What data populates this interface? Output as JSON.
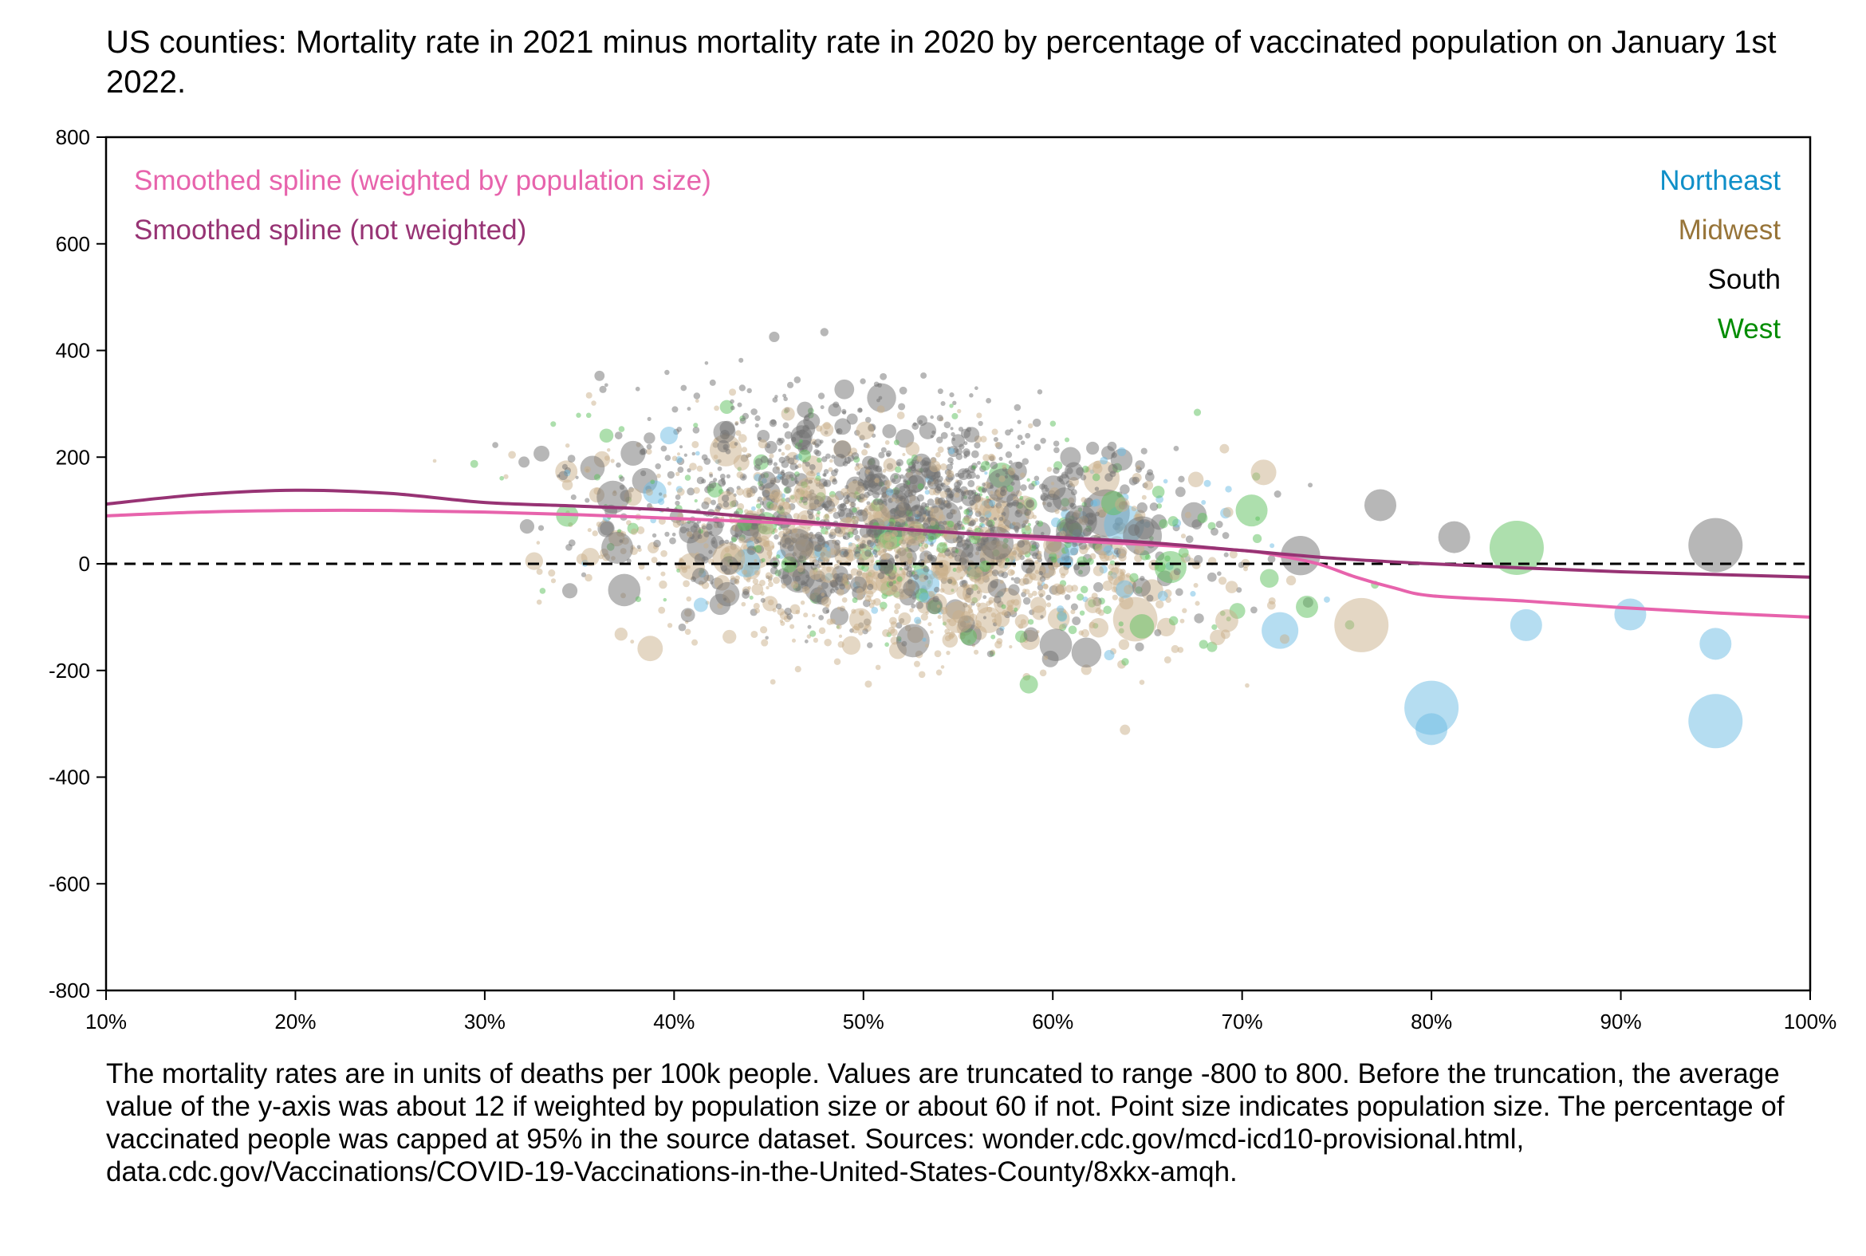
{
  "chart_data": {
    "type": "scatter",
    "title": "US counties: Mortality rate in 2021 minus mortality rate in 2020 by percentage of vaccinated population on January 1st 2022.",
    "xlabel": "",
    "ylabel": "",
    "xlim": [
      10,
      100
    ],
    "ylim": [
      -800,
      800
    ],
    "x_ticks": [
      10,
      20,
      30,
      40,
      50,
      60,
      70,
      80,
      90,
      100
    ],
    "x_tick_labels": [
      "10%",
      "20%",
      "30%",
      "40%",
      "50%",
      "60%",
      "70%",
      "80%",
      "90%",
      "100%"
    ],
    "y_ticks": [
      800,
      600,
      400,
      200,
      0,
      -200,
      -400,
      -600,
      -800
    ],
    "y_tick_labels": [
      "800",
      "600",
      "400",
      "200",
      "0",
      "-200",
      "-400",
      "-600",
      "-800"
    ],
    "grid": false,
    "reference_line": {
      "y": 0,
      "style": "dashed",
      "color": "#000000"
    },
    "regions": [
      {
        "name": "Northeast",
        "color": "#0f8fc8",
        "point_color": "#6bbce3"
      },
      {
        "name": "Midwest",
        "color": "#977438",
        "point_color": "#c9b08a"
      },
      {
        "name": "South",
        "color": "#000000",
        "point_color": "#707070"
      },
      {
        "name": "West",
        "color": "#008c00",
        "point_color": "#5cbf5c"
      }
    ],
    "legend_placement": "top-right",
    "series": [
      {
        "name": "Smoothed spline (weighted by population size)",
        "type": "line",
        "color": "#e763ac",
        "x": [
          10,
          15,
          20,
          25,
          30,
          35,
          40,
          45,
          50,
          55,
          60,
          65,
          70,
          72,
          74,
          76,
          78,
          80,
          85,
          90,
          95,
          100
        ],
        "y": [
          90,
          97,
          100,
          100,
          97,
          92,
          85,
          78,
          70,
          58,
          45,
          36,
          25,
          15,
          0,
          -25,
          -45,
          -60,
          -70,
          -82,
          -92,
          -100
        ]
      },
      {
        "name": "Smoothed spline (not weighted)",
        "type": "line",
        "color": "#973374",
        "x": [
          10,
          15,
          20,
          25,
          30,
          35,
          40,
          45,
          50,
          55,
          60,
          65,
          70,
          75,
          80,
          85,
          90,
          95,
          100
        ],
        "y": [
          112,
          130,
          138,
          132,
          115,
          108,
          100,
          85,
          70,
          58,
          50,
          40,
          25,
          10,
          0,
          -8,
          -15,
          -20,
          -25
        ]
      }
    ],
    "highlight_points": [
      {
        "region": "Northeast",
        "x": 80,
        "y": -270,
        "size": "large"
      },
      {
        "region": "Northeast",
        "x": 80,
        "y": -310,
        "size": "medium"
      },
      {
        "region": "Northeast",
        "x": 95,
        "y": -295,
        "size": "large"
      },
      {
        "region": "Northeast",
        "x": 95,
        "y": -150,
        "size": "medium"
      },
      {
        "region": "Northeast",
        "x": 90.5,
        "y": -95,
        "size": "medium"
      },
      {
        "region": "Northeast",
        "x": 85,
        "y": -115,
        "size": "medium"
      },
      {
        "region": "Midwest",
        "x": 76.3,
        "y": -115,
        "size": "large"
      },
      {
        "region": "Midwest",
        "x": 55,
        "y": -100,
        "size": "medium"
      },
      {
        "region": "South",
        "x": 77.3,
        "y": 110,
        "size": "medium"
      },
      {
        "region": "South",
        "x": 95,
        "y": 35,
        "size": "large"
      },
      {
        "region": "South",
        "x": 81.2,
        "y": 50,
        "size": "medium"
      },
      {
        "region": "South",
        "x": 37,
        "y": 30,
        "size": "medium"
      },
      {
        "region": "South",
        "x": 61.5,
        "y": 80,
        "size": "medium"
      },
      {
        "region": "West",
        "x": 84.5,
        "y": 30,
        "size": "large"
      },
      {
        "region": "West",
        "x": 70.5,
        "y": 100,
        "size": "medium"
      }
    ],
    "point_size_meaning": "population size"
  },
  "legend": {
    "splines": [
      {
        "label": "Smoothed spline (weighted by population size)",
        "color": "#e763ac"
      },
      {
        "label": "Smoothed spline (not weighted)",
        "color": "#973374"
      }
    ],
    "regions": [
      {
        "label": "Northeast",
        "color": "#0f8fc8"
      },
      {
        "label": "Midwest",
        "color": "#977438"
      },
      {
        "label": "South",
        "color": "#000000"
      },
      {
        "label": "West",
        "color": "#008c00"
      }
    ]
  },
  "footnote": "The mortality rates are in units of deaths per 100k people. Values are truncated to range -800 to 800. Before the truncation, the average value of the y-axis was about 12 if weighted by population size or about 60 if not. Point size indicates population size. The percentage of vaccinated people was capped at 95% in the source dataset. Sources: wonder.cdc.gov/mcd-icd10-provisional.html, data.cdc.gov/Vaccinations/COVID-19-Vaccinations-in-the-United-States-County/8xkx-amqh."
}
